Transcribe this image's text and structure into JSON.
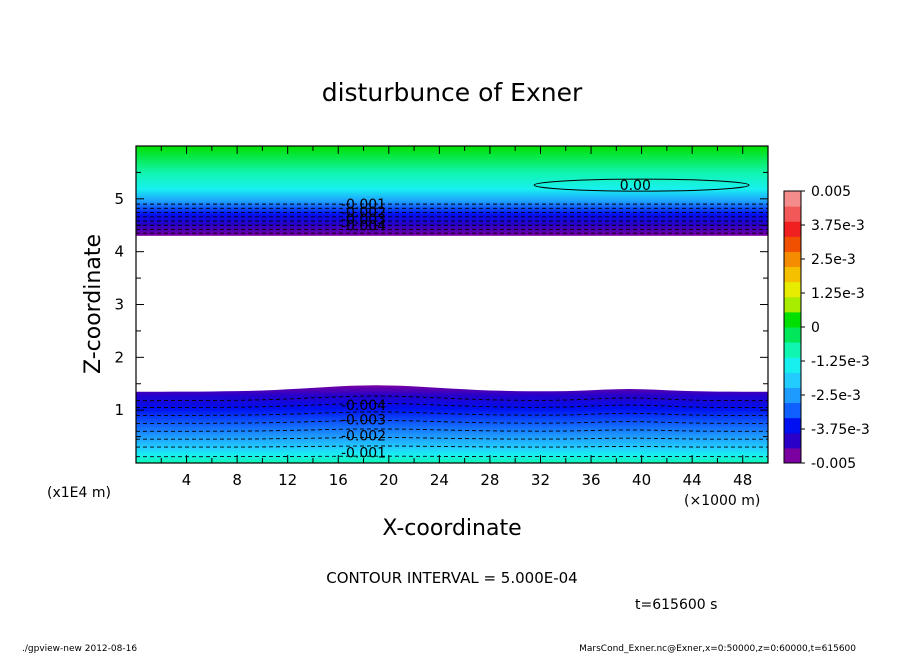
{
  "chart_data": {
    "type": "heatmap",
    "title": "disturbunce of Exner",
    "xlabel": "X-coordinate",
    "ylabel": "Z-coordinate",
    "x_unit": "(×1000 m)",
    "y_unit": "(x1E4 m)",
    "xlim": [
      0,
      50
    ],
    "ylim": [
      0,
      6
    ],
    "x_ticks": [
      {
        "v": 4,
        "label": "4"
      },
      {
        "v": 8,
        "label": "8"
      },
      {
        "v": 12,
        "label": "12"
      },
      {
        "v": 16,
        "label": "16"
      },
      {
        "v": 20,
        "label": "20"
      },
      {
        "v": 24,
        "label": "24"
      },
      {
        "v": 28,
        "label": "28"
      },
      {
        "v": 32,
        "label": "32"
      },
      {
        "v": 36,
        "label": "36"
      },
      {
        "v": 40,
        "label": "40"
      },
      {
        "v": 44,
        "label": "44"
      },
      {
        "v": 48,
        "label": "48"
      }
    ],
    "y_ticks": [
      {
        "v": 1,
        "label": "1"
      },
      {
        "v": 2,
        "label": "2"
      },
      {
        "v": 3,
        "label": "3"
      },
      {
        "v": 4,
        "label": "4"
      },
      {
        "v": 5,
        "label": "5"
      }
    ],
    "regions": [
      {
        "name": "upper",
        "z_from": 4.3,
        "z_to": 6.0,
        "values_at_edge": [
          -0.005,
          0.0
        ]
      },
      {
        "name": "lower",
        "z_from": 0.0,
        "z_to": 1.35,
        "values_at_edge": [
          -0.001,
          -0.005
        ]
      }
    ],
    "contour_labels": [
      {
        "text": "0.00",
        "x": 39.5,
        "z": 5.26
      },
      {
        "text": "-0.001",
        "x": 18,
        "z": 4.9
      },
      {
        "text": "-0.002",
        "x": 18,
        "z": 4.75
      },
      {
        "text": "-0.003",
        "x": 18,
        "z": 4.62
      },
      {
        "text": "-0.004",
        "x": 18,
        "z": 4.5
      },
      {
        "text": "-0.004",
        "x": 18,
        "z": 1.1
      },
      {
        "text": "-0.003",
        "x": 18,
        "z": 0.82
      },
      {
        "text": "-0.002",
        "x": 18,
        "z": 0.52
      },
      {
        "text": "-0.001",
        "x": 18,
        "z": 0.2
      }
    ],
    "colorbar": {
      "min": -0.005,
      "max": 0.005,
      "labels": [
        "0.005",
        "3.75e-3",
        "2.5e-3",
        "1.25e-3",
        "0",
        "-1.25e-3",
        "-2.5e-3",
        "-3.75e-3",
        "-0.005"
      ],
      "colors": [
        "#7a00a0",
        "#2a00c8",
        "#0010f0",
        "#1060ff",
        "#1e9bff",
        "#22ccff",
        "#18f0f0",
        "#10f5b0",
        "#00e85a",
        "#00e000",
        "#a8ec00",
        "#e8ec00",
        "#f5c000",
        "#f58c00",
        "#f05000",
        "#f02020",
        "#f25858",
        "#f58c8c"
      ]
    },
    "contour_interval_text": "CONTOUR INTERVAL = 5.000E-04",
    "time_text": "t=615600 s",
    "footer_left": "./gpview-new  2012-08-16",
    "footer_right": "MarsCond_Exner.nc@Exner,x=0:50000,z=0:60000,t=615600"
  }
}
